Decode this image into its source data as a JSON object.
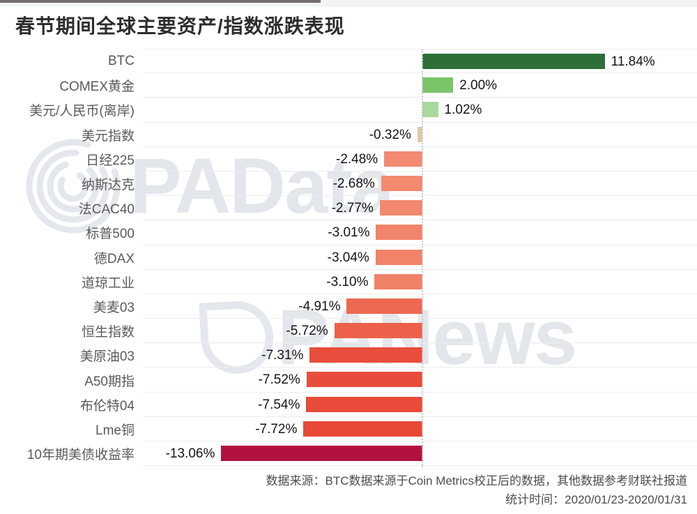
{
  "page": {
    "title": "春节期间全球主要资产/指数涨跌表现"
  },
  "watermarks": [
    {
      "text": "PAData"
    },
    {
      "text": "PANews"
    }
  ],
  "chart_data": {
    "type": "bar",
    "orientation": "horizontal",
    "title": "春节期间全球主要资产/指数涨跌表现",
    "unit": "%",
    "categories": [
      "BTC",
      "COMEX黄金",
      "美元/人民币(离岸)",
      "美元指数",
      "日经225",
      "纳斯达克",
      "法CAC40",
      "标普500",
      "德DAX",
      "道琼工业",
      "美麦03",
      "恒生指数",
      "美原油03",
      "A50期指",
      "布伦特04",
      "Lme铜",
      "10年期美债收益率"
    ],
    "values": [
      11.84,
      2.0,
      1.02,
      -0.32,
      -2.48,
      -2.68,
      -2.77,
      -3.01,
      -3.04,
      -3.1,
      -4.91,
      -5.72,
      -7.31,
      -7.52,
      -7.54,
      -7.72,
      -13.06
    ],
    "labels": [
      "11.84%",
      "2.00%",
      "1.02%",
      "-0.32%",
      "-2.48%",
      "-2.68%",
      "-2.77%",
      "-3.01%",
      "-3.04%",
      "-3.10%",
      "-4.91%",
      "-5.72%",
      "-7.31%",
      "-7.52%",
      "-7.54%",
      "-7.72%",
      "-13.06%"
    ],
    "bar_colors": [
      "#2e6f38",
      "#7ac468",
      "#a9d89c",
      "#e3c7a2",
      "#f28b72",
      "#f28a70",
      "#f2886e",
      "#f1846a",
      "#f18369",
      "#f18268",
      "#ee6950",
      "#ed614a",
      "#e94e3c",
      "#e84c3a",
      "#e84b39",
      "#e84937",
      "#b2123f"
    ],
    "xlim": [
      -13.5,
      12.5
    ],
    "zero_line": "dotted-vertical",
    "grid": "horizontal-row-separators",
    "legend": "none",
    "value_label_position": "outside-bar-end"
  },
  "footer": {
    "source_line": "数据来源：BTC数据来源于Coin Metrics校正后的数据，其他数据参考财联社报道",
    "period_line": "统计时间：2020/01/23-2020/01/31"
  }
}
